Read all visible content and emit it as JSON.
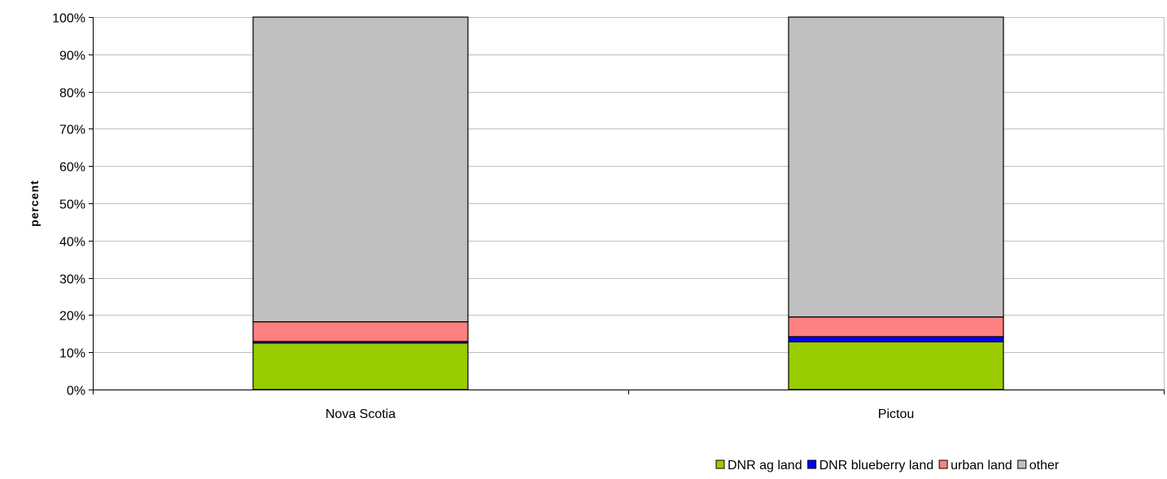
{
  "chart_data": {
    "type": "bar",
    "stacked": true,
    "percent_stacked": true,
    "title": "",
    "xlabel": "",
    "ylabel": "percent",
    "ylim": [
      0,
      100
    ],
    "y_ticks": [
      "0%",
      "10%",
      "20%",
      "30%",
      "40%",
      "50%",
      "60%",
      "70%",
      "80%",
      "90%",
      "100%"
    ],
    "grid": true,
    "legend_position": "bottom-right",
    "categories": [
      "Nova Scotia",
      "Pictou"
    ],
    "series": [
      {
        "name": "DNR ag land",
        "color": "#99cc00",
        "values": [
          12.5,
          12.8
        ]
      },
      {
        "name": "DNR blueberry land",
        "color": "#0000ff",
        "values": [
          0.4,
          1.4
        ]
      },
      {
        "name": "urban land",
        "color": "#ff8080",
        "values": [
          5.3,
          5.3
        ]
      },
      {
        "name": "other",
        "color": "#c0c0c0",
        "values": [
          81.8,
          80.5
        ]
      }
    ]
  }
}
